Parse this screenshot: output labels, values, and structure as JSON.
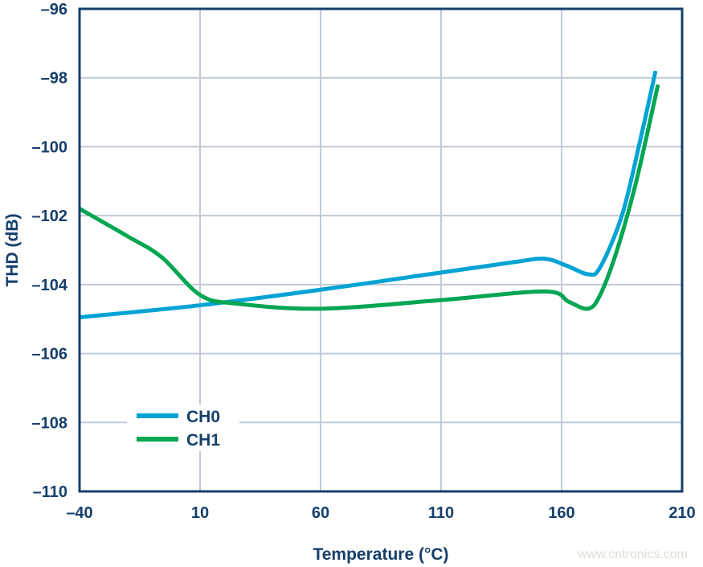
{
  "chart_data": {
    "type": "line",
    "xlabel": "Temperature (°C)",
    "ylabel": "THD (dB)",
    "xlim": [
      -40,
      210
    ],
    "ylim": [
      -110,
      -96
    ],
    "xticks": [
      "–40",
      "10",
      "60",
      "110",
      "160",
      "210"
    ],
    "yticks": [
      "–96",
      "–98",
      "–100",
      "–102",
      "–104",
      "–106",
      "–108",
      "–110"
    ],
    "grid": true,
    "legend_position": "bottom-left",
    "series": [
      {
        "name": "CH0",
        "color": "#00a3d4",
        "x": [
          -40,
          10,
          60,
          110,
          140,
          153,
          162,
          171,
          176,
          185,
          192,
          199
        ],
        "y": [
          -104.95,
          -104.6,
          -104.15,
          -103.65,
          -103.35,
          -103.25,
          -103.45,
          -103.7,
          -103.5,
          -102.0,
          -100.0,
          -97.8
        ]
      },
      {
        "name": "CH1",
        "color": "#00a651",
        "x": [
          -40,
          -20,
          -6,
          10,
          25,
          60,
          110,
          153,
          163,
          171,
          176,
          183,
          191,
          200
        ],
        "y": [
          -101.8,
          -102.6,
          -103.2,
          -104.3,
          -104.55,
          -104.7,
          -104.45,
          -104.2,
          -104.5,
          -104.7,
          -104.3,
          -103.0,
          -101.0,
          -98.2
        ]
      }
    ]
  },
  "watermark": "www.cntronics.com"
}
